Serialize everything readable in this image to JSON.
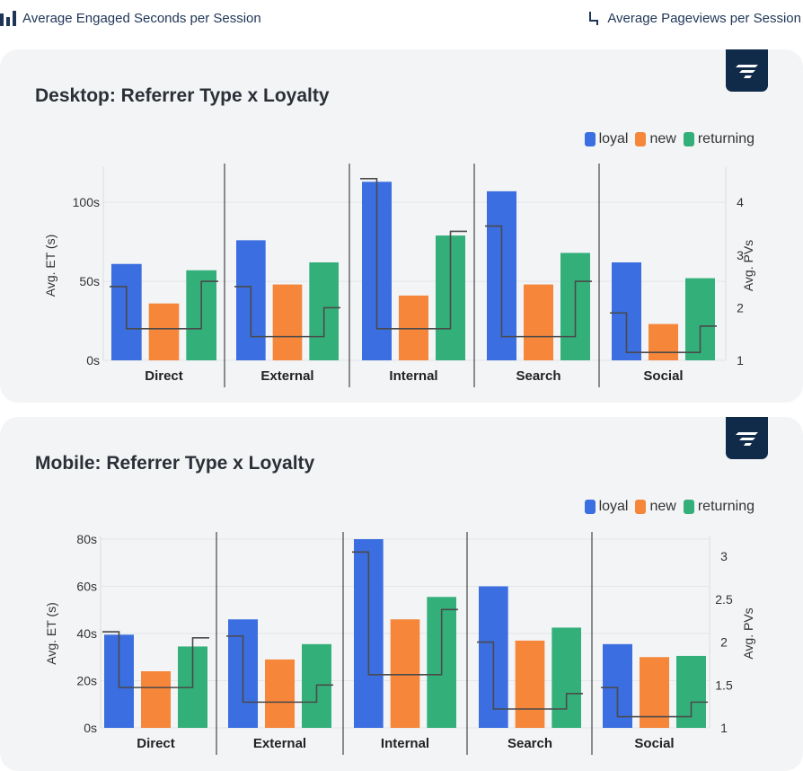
{
  "top_legend": {
    "left_label": "Average Engaged Seconds per Session",
    "left_icon": "bar-chart-icon",
    "right_label": "Average Pageviews per Session",
    "right_icon": "step-line-icon"
  },
  "colors": {
    "loyal": "#3b6ee0",
    "new": "#f5863a",
    "returning": "#33b07a",
    "step_line": "#4a4a4a"
  },
  "panels": [
    {
      "title": "Desktop: Referrer Type x Loyalty",
      "logo_icon": "brand-logo-icon",
      "legend": [
        "loyal",
        "new",
        "returning"
      ],
      "chart_data": {
        "type": "bar",
        "categories": [
          "Direct",
          "External",
          "Internal",
          "Search",
          "Social"
        ],
        "series": [
          {
            "name": "loyal",
            "values": [
              61,
              76,
              113,
              107,
              62
            ]
          },
          {
            "name": "new",
            "values": [
              36,
              48,
              41,
              48,
              23
            ]
          },
          {
            "name": "returning",
            "values": [
              57,
              62,
              79,
              68,
              52
            ]
          }
        ],
        "line_series": [
          {
            "values": [
              [
                2.4,
                1.6,
                2.5
              ],
              [
                2.4,
                1.45,
                2.0
              ],
              [
                4.45,
                1.6,
                3.45
              ],
              [
                3.55,
                1.45,
                2.5
              ],
              [
                1.9,
                1.15,
                1.65
              ]
            ]
          }
        ],
        "ylabel": "Avg. ET (s)",
        "y2label": "Avg. PVs",
        "ylim": [
          0,
          120
        ],
        "y_ticks": [
          0,
          50,
          100
        ],
        "y_tick_labels": [
          "0s",
          "50s",
          "100s"
        ],
        "y2lim": [
          1,
          4.6
        ],
        "y2_ticks": [
          1,
          2,
          3,
          4
        ],
        "y2_tick_labels": [
          "1",
          "2",
          "3",
          "4"
        ]
      }
    },
    {
      "title": "Mobile: Referrer Type x Loyalty",
      "logo_icon": "brand-logo-icon",
      "legend": [
        "loyal",
        "new",
        "returning"
      ],
      "chart_data": {
        "type": "bar",
        "categories": [
          "Direct",
          "External",
          "Internal",
          "Search",
          "Social"
        ],
        "series": [
          {
            "name": "loyal",
            "values": [
              39.5,
              46,
              80,
              60,
              35.5
            ]
          },
          {
            "name": "new",
            "values": [
              24,
              29,
              46,
              37,
              30
            ]
          },
          {
            "name": "returning",
            "values": [
              34.5,
              35.5,
              55.5,
              42.5,
              30.5
            ]
          }
        ],
        "line_series": [
          {
            "values": [
              [
                2.12,
                1.47,
                2.05
              ],
              [
                2.07,
                1.3,
                1.5
              ],
              [
                3.05,
                1.62,
                2.38
              ],
              [
                2.0,
                1.22,
                1.4
              ],
              [
                1.47,
                1.13,
                1.3
              ]
            ]
          }
        ],
        "ylabel": "Avg. ET (s)",
        "y2label": "Avg. PVs",
        "ylim": [
          0,
          80
        ],
        "y_ticks": [
          0,
          20,
          40,
          60,
          80
        ],
        "y_tick_labels": [
          "0s",
          "20s",
          "40s",
          "60s",
          "80s"
        ],
        "y2lim": [
          1,
          3.2
        ],
        "y2_ticks": [
          1,
          1.5,
          2,
          2.5,
          3
        ],
        "y2_tick_labels": [
          "1",
          "1.5",
          "2",
          "2.5",
          "3"
        ]
      }
    }
  ]
}
